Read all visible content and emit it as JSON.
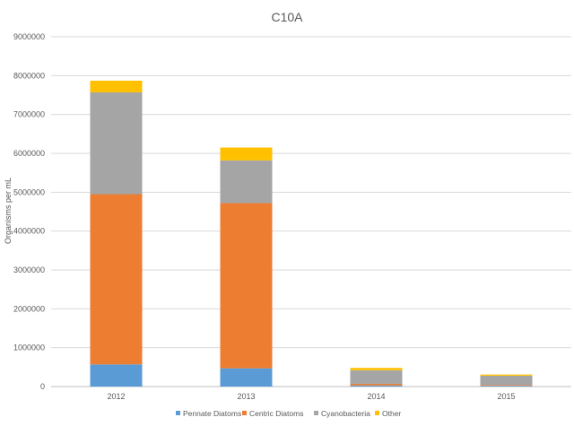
{
  "chart_data": {
    "type": "bar",
    "stacked": true,
    "title": "C10A",
    "xlabel": "",
    "ylabel": "Organisms per mL",
    "ylim": [
      0,
      9000000
    ],
    "yticks": [
      0,
      1000000,
      2000000,
      3000000,
      4000000,
      5000000,
      6000000,
      7000000,
      8000000,
      9000000
    ],
    "ytick_labels": [
      "0",
      "1000000",
      "2000000",
      "3000000",
      "4000000",
      "5000000",
      "6000000",
      "7000000",
      "8000000",
      "9000000"
    ],
    "grid": true,
    "legend_position": "bottom",
    "categories": [
      "2012",
      "2013",
      "2014",
      "2015"
    ],
    "series": [
      {
        "name": "Pennate Diatoms",
        "color": "#5B9BD5",
        "values": [
          570000,
          470000,
          30000,
          20000
        ]
      },
      {
        "name": "Centric Diatoms",
        "color": "#ED7D31",
        "values": [
          4380000,
          4250000,
          40000,
          20000
        ]
      },
      {
        "name": "Cyanobacteria",
        "color": "#A5A5A5",
        "values": [
          2620000,
          1100000,
          350000,
          240000
        ]
      },
      {
        "name": "Other",
        "color": "#FFC000",
        "values": [
          300000,
          330000,
          60000,
          30000
        ]
      }
    ]
  }
}
